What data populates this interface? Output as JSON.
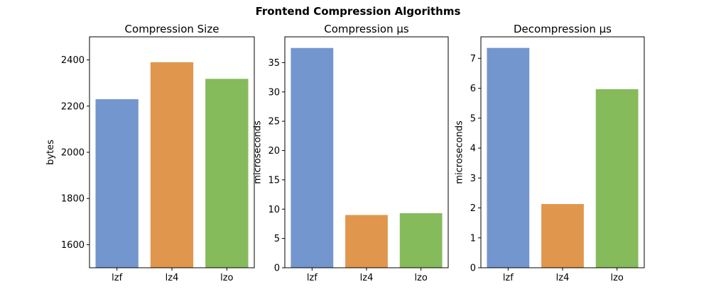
{
  "figure": {
    "suptitle": "Frontend Compression Algorithms"
  },
  "chart_data": [
    {
      "type": "bar",
      "title": "Compression Size",
      "xlabel": "",
      "ylabel": "bytes",
      "categories": [
        "lzf",
        "lz4",
        "lzo"
      ],
      "values": [
        2230,
        2390,
        2318
      ],
      "colors": [
        "#7496cf",
        "#e0974d",
        "#85bb5b"
      ],
      "ylim": [
        1500,
        2500
      ],
      "yticks": [
        1600,
        1800,
        2000,
        2200,
        2400
      ],
      "grid": false,
      "legend": "none"
    },
    {
      "type": "bar",
      "title": "Compression μs",
      "xlabel": "",
      "ylabel": "microseconds",
      "categories": [
        "lzf",
        "lz4",
        "lzo"
      ],
      "values": [
        37.5,
        9.0,
        9.3
      ],
      "colors": [
        "#7496cf",
        "#e0974d",
        "#85bb5b"
      ],
      "ylim": [
        0,
        39.4
      ],
      "yticks": [
        0,
        5,
        10,
        15,
        20,
        25,
        30,
        35
      ],
      "grid": false,
      "legend": "none"
    },
    {
      "type": "bar",
      "title": "Decompression μs",
      "xlabel": "",
      "ylabel": "microseconds",
      "categories": [
        "lzf",
        "lz4",
        "lzo"
      ],
      "values": [
        7.35,
        2.13,
        5.97
      ],
      "colors": [
        "#7496cf",
        "#e0974d",
        "#85bb5b"
      ],
      "ylim": [
        0,
        7.72
      ],
      "yticks": [
        0,
        1,
        2,
        3,
        4,
        5,
        6,
        7
      ],
      "grid": false,
      "legend": "none"
    }
  ]
}
